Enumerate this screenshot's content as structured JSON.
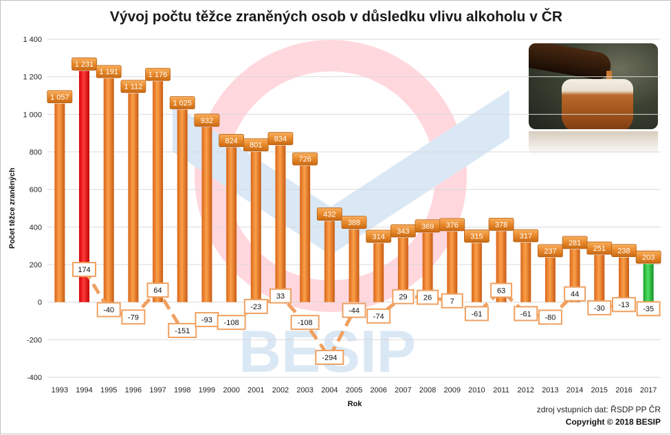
{
  "title": "Vývoj počtu těžce zraněných osob v důsledku vlivu alkoholu v ČR",
  "source_text": "zdroj vstupních dat: ŘSDP PP ČR",
  "copyright_text": "Copyright © 2018  BESIP",
  "watermark_text": "BESIP",
  "colors": {
    "bar_default": "#f08a24",
    "bar_max": "#ff0000",
    "bar_last": "#22c23a",
    "label_box": "#e8892b",
    "change_line": "#f0a060"
  },
  "chart_data": {
    "type": "bar",
    "title": "Vývoj počtu těžce zraněných osob v důsledku vlivu alkoholu v ČR",
    "xlabel": "Rok",
    "ylabel": "Počet těžce zraněných",
    "ylim": [
      -400,
      1400
    ],
    "yticks": [
      -400,
      -200,
      0,
      200,
      400,
      600,
      800,
      1000,
      1200,
      1400
    ],
    "ytick_labels": [
      "-400",
      "-200",
      "0",
      "200",
      "400",
      "600",
      "800",
      "1 000",
      "1 200",
      "1 400"
    ],
    "categories": [
      "1993",
      "1994",
      "1995",
      "1996",
      "1997",
      "1998",
      "1999",
      "2000",
      "2001",
      "2002",
      "2003",
      "2004",
      "2005",
      "2006",
      "2007",
      "2008",
      "2009",
      "2010",
      "2011",
      "2012",
      "2013",
      "2014",
      "2015",
      "2016",
      "2017"
    ],
    "series": [
      {
        "type": "bar",
        "values": [
          1057,
          1231,
          1191,
          1112,
          1176,
          1025,
          932,
          824,
          801,
          834,
          726,
          432,
          388,
          314,
          343,
          369,
          376,
          315,
          378,
          317,
          237,
          281,
          251,
          238,
          203
        ],
        "value_labels": [
          "1 057",
          "1 231",
          "1 191",
          "1 112",
          "1 176",
          "1 025",
          "932",
          "824",
          "801",
          "834",
          "726",
          "432",
          "388",
          "314",
          "343",
          "369",
          "376",
          "315",
          "378",
          "317",
          "237",
          "281",
          "251",
          "238",
          "203"
        ]
      },
      {
        "type": "line",
        "style": "dashed",
        "values": [
          null,
          174,
          -40,
          -79,
          64,
          -151,
          -93,
          -108,
          -23,
          33,
          -108,
          -294,
          -44,
          -74,
          29,
          26,
          7,
          -61,
          63,
          -61,
          -80,
          44,
          -30,
          -13,
          -35
        ],
        "value_labels": [
          "",
          "174",
          "-40",
          "-79",
          "64",
          "-151",
          "-93",
          "-108",
          "-23",
          "33",
          "-108",
          "-294",
          "-44",
          "-74",
          "29",
          "26",
          "7",
          "-61",
          "63",
          "-61",
          "-80",
          "44",
          "-30",
          "-13",
          "-35"
        ]
      }
    ],
    "highlight": {
      "max_category": "1994",
      "last_category": "2017"
    },
    "grid": true,
    "legend": "none"
  }
}
